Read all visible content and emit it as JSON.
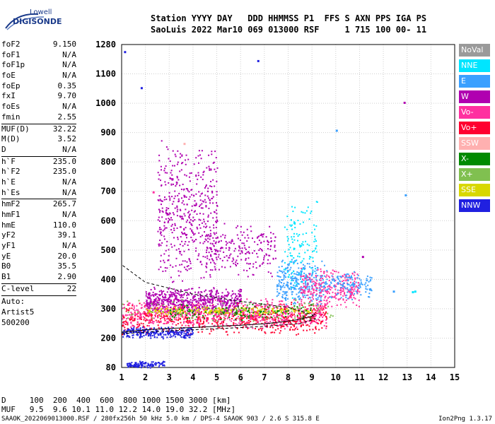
{
  "logo": {
    "top": "Lowell",
    "bottom": "DIGISONDE"
  },
  "header": {
    "line1": "Station YYYY DAY   DDD HHMMSS P1  FFS S AXN PPS IGA PS",
    "line2": "SaoLuis 2022 Mar10 069 013000 RSF     1 715 100 00- 11"
  },
  "params_groups": [
    [
      [
        "foF2",
        "9.150"
      ],
      [
        "foF1",
        "N/A"
      ],
      [
        "foF1p",
        "N/A"
      ],
      [
        "foE",
        "N/A"
      ],
      [
        "foEp",
        "0.35"
      ],
      [
        "fxI",
        "9.70"
      ],
      [
        "foEs",
        "N/A"
      ],
      [
        "fmin",
        "2.55"
      ]
    ],
    [
      [
        "MUF(D)",
        "32.22"
      ],
      [
        "M(D)",
        "3.52"
      ],
      [
        "D",
        "N/A"
      ]
    ],
    [
      [
        "h`F",
        "235.0"
      ],
      [
        "h`F2",
        "235.0"
      ],
      [
        "h`E",
        "N/A"
      ],
      [
        "h`Es",
        "N/A"
      ]
    ],
    [
      [
        "hmF2",
        "265.7"
      ],
      [
        "hmF1",
        "N/A"
      ],
      [
        "hmE",
        "110.0"
      ],
      [
        "yF2",
        "39.1"
      ],
      [
        "yF1",
        "N/A"
      ],
      [
        "yE",
        "20.0"
      ],
      [
        "B0",
        "35.5"
      ],
      [
        "B1",
        "2.90"
      ]
    ],
    [
      [
        "C-level",
        "22"
      ]
    ]
  ],
  "auto_text": [
    "Auto:",
    "Artist5",
    "500200"
  ],
  "legend": [
    {
      "label": "NoVal",
      "color": "#9a9a9a"
    },
    {
      "label": "NNE",
      "color": "#00e5ff"
    },
    {
      "label": "E",
      "color": "#3aa0ff"
    },
    {
      "label": "W",
      "color": "#b000b0"
    },
    {
      "label": "Vo-",
      "color": "#ff30a0"
    },
    {
      "label": "Vo+",
      "color": "#ff0030"
    },
    {
      "label": "SSW",
      "color": "#ffb0b0"
    },
    {
      "label": "X-",
      "color": "#008a00"
    },
    {
      "label": "X+",
      "color": "#80c050"
    },
    {
      "label": "SSE",
      "color": "#d8d800"
    },
    {
      "label": "NNW",
      "color": "#2020e0"
    }
  ],
  "footer": {
    "d_row": "D     100  200  400  600  800 1000 1500 3000 [km]",
    "muf_row": "MUF   9.5  9.6 10.1 11.0 12.2 14.0 19.0 32.2 [MHz]",
    "credits": "SAAOK_2022069013000.RSF / 280fx256h 50 kHz 5.0 km / DPS-4 SAAOK 903 / 2.6 S 315.8 E",
    "version": "Ion2Png 1.3.17"
  },
  "chart_data": {
    "type": "scatter",
    "title": "",
    "xlabel": "",
    "ylabel": "",
    "xlim": [
      1,
      15
    ],
    "ylim": [
      80,
      1280
    ],
    "x_ticks": [
      1,
      2,
      3,
      4,
      5,
      6,
      7,
      8,
      9,
      10,
      11,
      12,
      13,
      14,
      15
    ],
    "y_ticks": [
      80,
      200,
      300,
      400,
      500,
      600,
      700,
      800,
      900,
      1000,
      1100,
      1280
    ],
    "grid": true,
    "trace_curve": {
      "x": [
        1.0,
        2.0,
        3.0,
        4.0,
        5.0,
        6.0,
        7.0,
        8.0,
        8.5,
        9.0,
        9.15
      ],
      "y": [
        220,
        228,
        233,
        236,
        240,
        244,
        249,
        258,
        264,
        275,
        283
      ]
    },
    "profile_curve": {
      "x": [
        1.0,
        3.0,
        5.0,
        7.0,
        8.5,
        9.15,
        9.0,
        8.0,
        6.0,
        4.0,
        2.0,
        1.0
      ],
      "y": [
        215,
        225,
        232,
        240,
        250,
        265,
        280,
        305,
        325,
        350,
        390,
        450
      ]
    },
    "clusters": [
      {
        "x": [
          1.0,
          9.6
        ],
        "y": [
          210,
          330
        ],
        "color": "#ff0030",
        "n": 700
      },
      {
        "x": [
          1.0,
          9.6
        ],
        "y": [
          230,
          340
        ],
        "color": "#ff30a0",
        "n": 650
      },
      {
        "x": [
          2.0,
          6.0
        ],
        "y": [
          280,
          380
        ],
        "color": "#b000b0",
        "n": 550
      },
      {
        "x": [
          1.0,
          4.0
        ],
        "y": [
          200,
          240
        ],
        "color": "#2020e0",
        "n": 250
      },
      {
        "x": [
          1.2,
          2.8
        ],
        "y": [
          80,
          110
        ],
        "color": "#2020e0",
        "n": 110
      },
      {
        "x": [
          2.0,
          9.0
        ],
        "y": [
          280,
          310
        ],
        "color": "#d8d800",
        "n": 200
      },
      {
        "x": [
          2.5,
          5.0
        ],
        "y": [
          360,
          880
        ],
        "color": "#b000b0",
        "n": 500
      },
      {
        "x": [
          4.5,
          7.5
        ],
        "y": [
          400,
          600
        ],
        "color": "#b000b0",
        "n": 220
      },
      {
        "x": [
          7.5,
          9.5
        ],
        "y": [
          300,
          480
        ],
        "color": "#3aa0ff",
        "n": 300
      },
      {
        "x": [
          7.8,
          9.2
        ],
        "y": [
          320,
          700
        ],
        "color": "#00e5ff",
        "n": 130
      },
      {
        "x": [
          8.5,
          11.0
        ],
        "y": [
          300,
          450
        ],
        "color": "#ff30a0",
        "n": 280
      },
      {
        "x": [
          9.5,
          11.5
        ],
        "y": [
          330,
          440
        ],
        "color": "#3aa0ff",
        "n": 130
      },
      {
        "x": [
          3.0,
          9.0
        ],
        "y": [
          260,
          320
        ],
        "color": "#008a00",
        "n": 130
      },
      {
        "x": [
          1.0,
          10.0
        ],
        "y": [
          250,
          340
        ],
        "color": "#80c050",
        "n": 90
      }
    ],
    "outliers": [
      {
        "x": 1.1,
        "y": 1240,
        "color": "#2020e0"
      },
      {
        "x": 6.7,
        "y": 1185,
        "color": "#2020e0"
      },
      {
        "x": 1.8,
        "y": 1055,
        "color": "#2020e0"
      },
      {
        "x": 12.85,
        "y": 1005,
        "color": "#b000b0"
      },
      {
        "x": 10.0,
        "y": 910,
        "color": "#3aa0ff"
      },
      {
        "x": 12.9,
        "y": 690,
        "color": "#3aa0ff"
      },
      {
        "x": 13.2,
        "y": 360,
        "color": "#00e5ff"
      },
      {
        "x": 13.3,
        "y": 362,
        "color": "#00e5ff"
      },
      {
        "x": 12.4,
        "y": 362,
        "color": "#3aa0ff"
      },
      {
        "x": 11.1,
        "y": 480,
        "color": "#b000b0"
      },
      {
        "x": 2.3,
        "y": 700,
        "color": "#ff30a0"
      },
      {
        "x": 3.6,
        "y": 865,
        "color": "#ffb0b0"
      }
    ]
  }
}
